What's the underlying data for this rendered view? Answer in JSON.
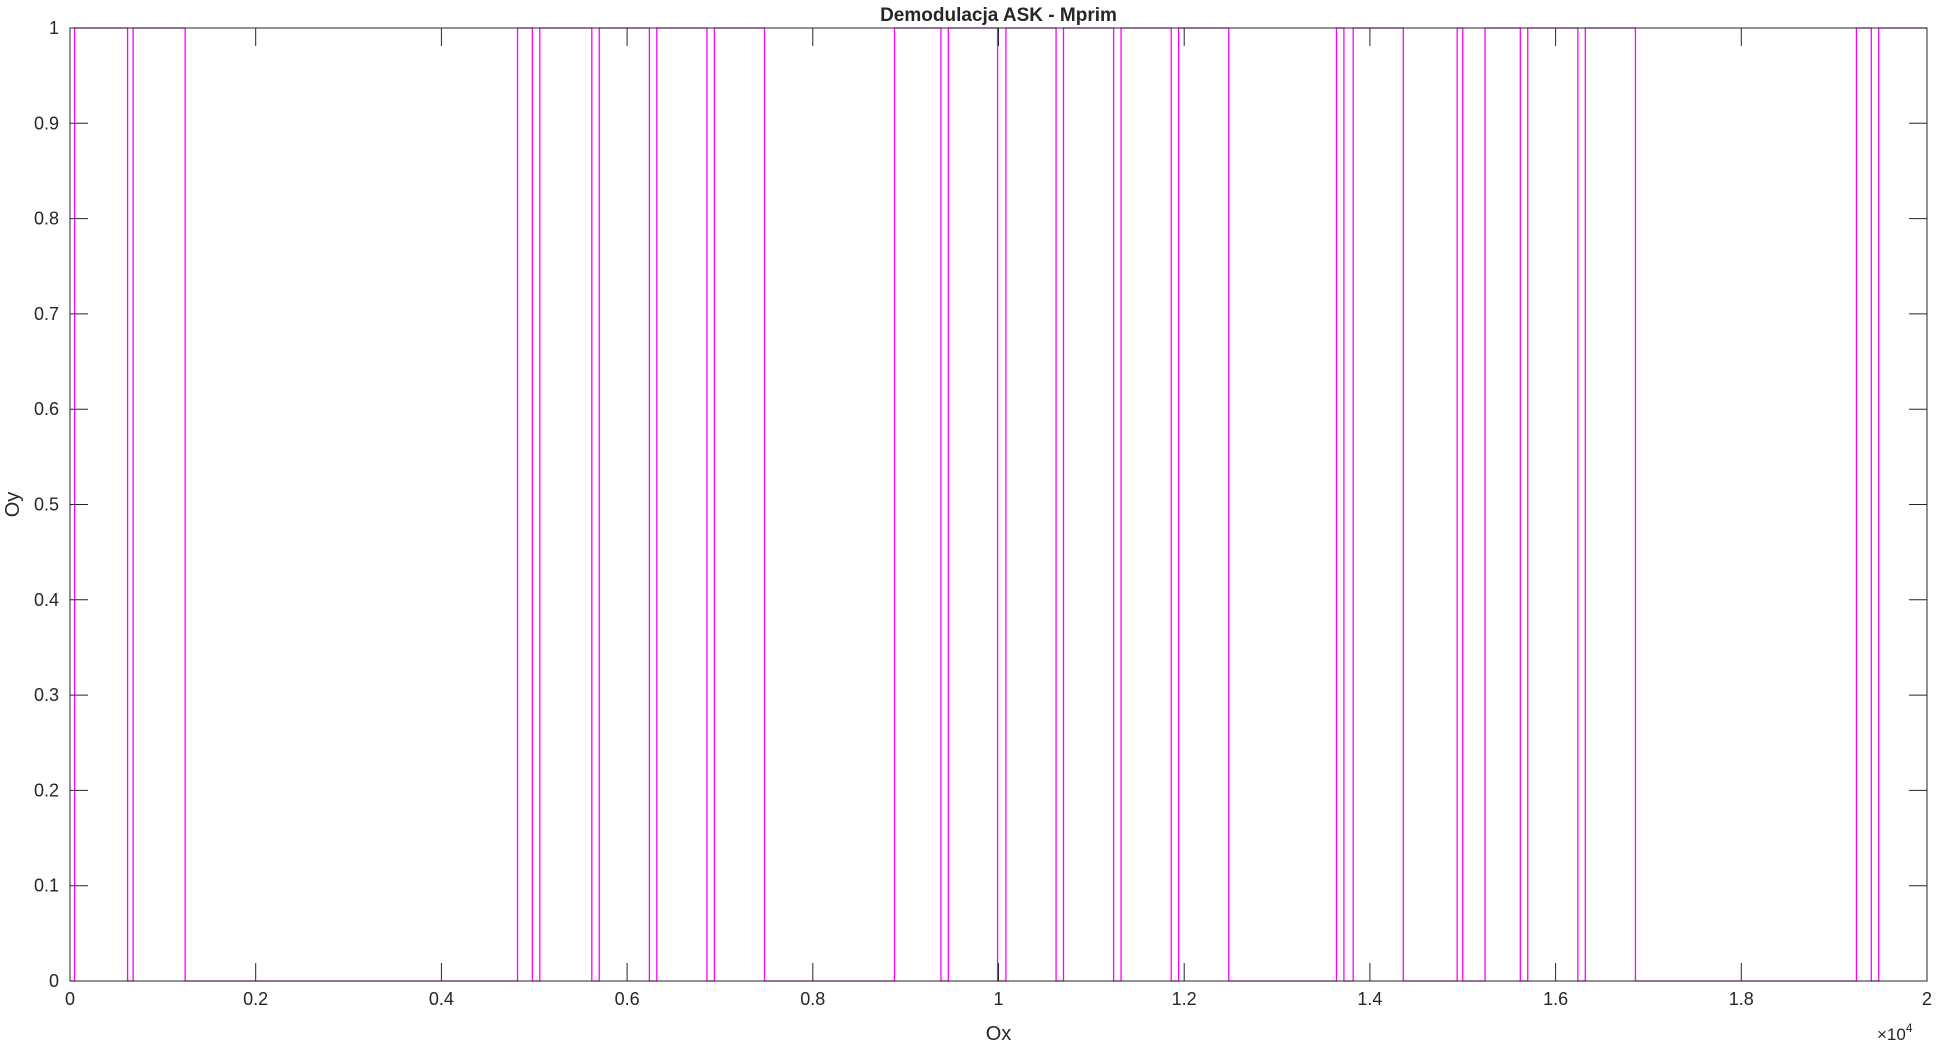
{
  "chart_data": {
    "type": "line",
    "title": "Demodulacja ASK - Mprim",
    "xlabel": "Ox",
    "ylabel": "Oy",
    "x_exponent_label": "×10",
    "x_exponent_power": "4",
    "xlim": [
      0,
      20000
    ],
    "ylim": [
      0,
      1
    ],
    "xticks": [
      0,
      2000,
      4000,
      6000,
      8000,
      10000,
      12000,
      14000,
      16000,
      18000,
      20000
    ],
    "xtick_labels": [
      "0",
      "0.2",
      "0.4",
      "0.6",
      "0.8",
      "1",
      "1.2",
      "1.4",
      "1.6",
      "1.8",
      "2"
    ],
    "yticks": [
      0,
      0.1,
      0.2,
      0.3,
      0.4,
      0.5,
      0.6,
      0.7,
      0.8,
      0.9,
      1
    ],
    "ytick_labels": [
      "0",
      "0.1",
      "0.2",
      "0.3",
      "0.4",
      "0.5",
      "0.6",
      "0.7",
      "0.8",
      "0.9",
      "1"
    ],
    "grid": false,
    "series": [
      {
        "color": "#ff00ff",
        "x": [
          0,
          50,
          50,
          80,
          80,
          620,
          620,
          680,
          680,
          1240,
          1240,
          4820,
          4820,
          4980,
          4980,
          5060,
          5060,
          5620,
          5620,
          5700,
          5700,
          6240,
          6240,
          6320,
          6320,
          6860,
          6860,
          6940,
          6940,
          7480,
          7480,
          8880,
          8880,
          9380,
          9380,
          9460,
          9460,
          9990,
          9990,
          10080,
          10080,
          10620,
          10620,
          10700,
          10700,
          11240,
          11240,
          11320,
          11320,
          11860,
          11860,
          11940,
          11940,
          12480,
          12480,
          13640,
          13640,
          13720,
          13720,
          13820,
          13820,
          14360,
          14360,
          14940,
          14940,
          15000,
          15000,
          15240,
          15240,
          15620,
          15620,
          15700,
          15700,
          16240,
          16240,
          16320,
          16320,
          16860,
          16860,
          19240,
          19240,
          19400,
          19400,
          19480,
          19480,
          20000
        ],
        "y": [
          0,
          0,
          1,
          1,
          1,
          1,
          0,
          0,
          1,
          1,
          0,
          0,
          1,
          1,
          0,
          0,
          1,
          1,
          0,
          0,
          1,
          1,
          0,
          0,
          1,
          1,
          0,
          0,
          1,
          1,
          0,
          0,
          1,
          1,
          0,
          0,
          1,
          1,
          0,
          0,
          1,
          1,
          0,
          0,
          1,
          1,
          0,
          0,
          1,
          1,
          0,
          0,
          1,
          1,
          0,
          0,
          1,
          1,
          0,
          0,
          1,
          1,
          0,
          0,
          1,
          1,
          0,
          0,
          1,
          1,
          0,
          0,
          1,
          1,
          0,
          0,
          1,
          1,
          0,
          0,
          1,
          1,
          0,
          0,
          1,
          1
        ]
      }
    ]
  }
}
